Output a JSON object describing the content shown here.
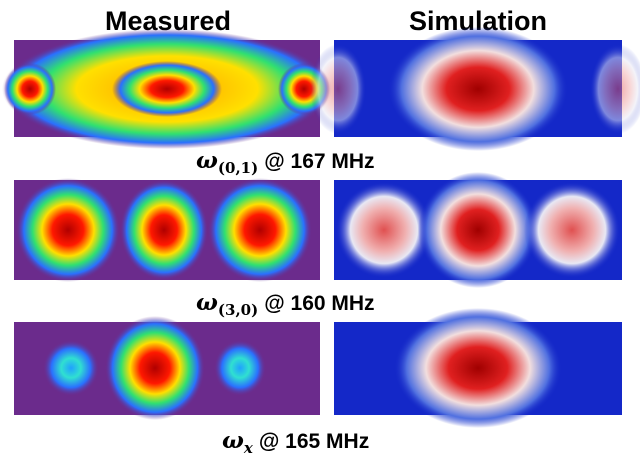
{
  "headers": [
    "Measured",
    "Simulation"
  ],
  "rows": [
    {
      "symbol": "ω",
      "index": "(0,1)",
      "frequency": "@ 167 MHz"
    },
    {
      "symbol": "ω",
      "index": "(3,0)",
      "frequency": "@ 160 MHz"
    },
    {
      "symbol": "ω",
      "index": "x",
      "frequency": "@ 165 MHz"
    }
  ]
}
